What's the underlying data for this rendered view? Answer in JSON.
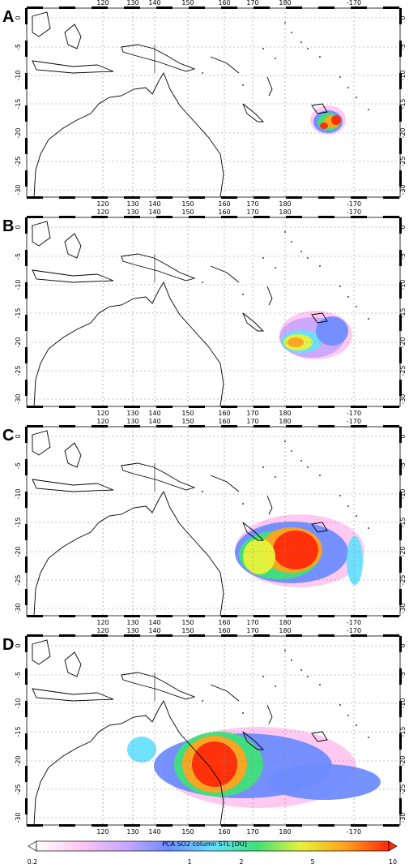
{
  "lon_ticks": [
    "120",
    "130",
    "140",
    "150",
    "160",
    "170",
    "180",
    "-170"
  ],
  "lat_ticks_left": [
    "0",
    "-5",
    "-10",
    "-15",
    "-20",
    "-25",
    "-30"
  ],
  "lat_ticks_right": [
    "0",
    "-5",
    "-10",
    "-15",
    "-20",
    "-25",
    "-30"
  ],
  "panels": [
    {
      "letter": "A"
    },
    {
      "letter": "B"
    },
    {
      "letter": "C"
    },
    {
      "letter": "D"
    }
  ],
  "colorbar": {
    "title": "PCA SO2 column STL [DU]",
    "tick_labels": [
      "0.2",
      "1",
      "2",
      "5",
      "10"
    ],
    "colors": [
      "#ffffff",
      "#ffc6f0",
      "#c9a8ff",
      "#6f8cff",
      "#67e0ff",
      "#3fe07a",
      "#e8f23a",
      "#ffa21c",
      "#ff2a0a"
    ],
    "arrow_low_color": "#ffffff",
    "arrow_high_color": "#ff2a0a"
  }
}
